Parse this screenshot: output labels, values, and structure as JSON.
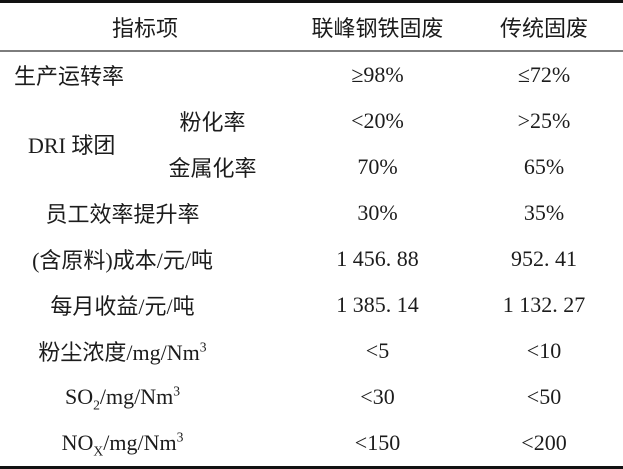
{
  "table": {
    "header": {
      "col1": "指标项",
      "col2": "联峰钢铁固废",
      "col3": "传统固废"
    },
    "rows": {
      "production": {
        "label": "生产运转率",
        "v1": "≥98%",
        "v2": "≤72%"
      },
      "dri": {
        "group_label": "DRI 球团",
        "pulverization": {
          "label": "粉化率",
          "v1": "<20%",
          "v2": ">25%"
        },
        "metallization": {
          "label": "金属化率",
          "v1": "70%",
          "v2": "65%"
        }
      },
      "efficiency": {
        "label": "员工效率提升率",
        "v1": "30%",
        "v2": "35%"
      },
      "cost": {
        "label": "(含原料)成本/元/吨",
        "v1": "1 456. 88",
        "v2": "952. 41"
      },
      "income": {
        "label": "每月收益/元/吨",
        "v1": "1 385. 14",
        "v2": "1 132. 27"
      },
      "dust": {
        "label_main": "粉尘浓度/mg/Nm",
        "label_sup": "3",
        "v1": "<5",
        "v2": "<10"
      },
      "so2": {
        "label_pre": "SO",
        "label_sub": "2",
        "label_mid": "/mg/Nm",
        "label_sup": "3",
        "v1": "<30",
        "v2": "<50"
      },
      "nox": {
        "label_pre": "NO",
        "label_sub": "X",
        "label_mid": "/mg/Nm",
        "label_sup": "3",
        "v1": "<150",
        "v2": "<200"
      }
    },
    "colors": {
      "border_heavy": "#111111",
      "border_header": "#7d7d7d",
      "text": "#1c1c1c",
      "background": "#ffffff"
    }
  }
}
